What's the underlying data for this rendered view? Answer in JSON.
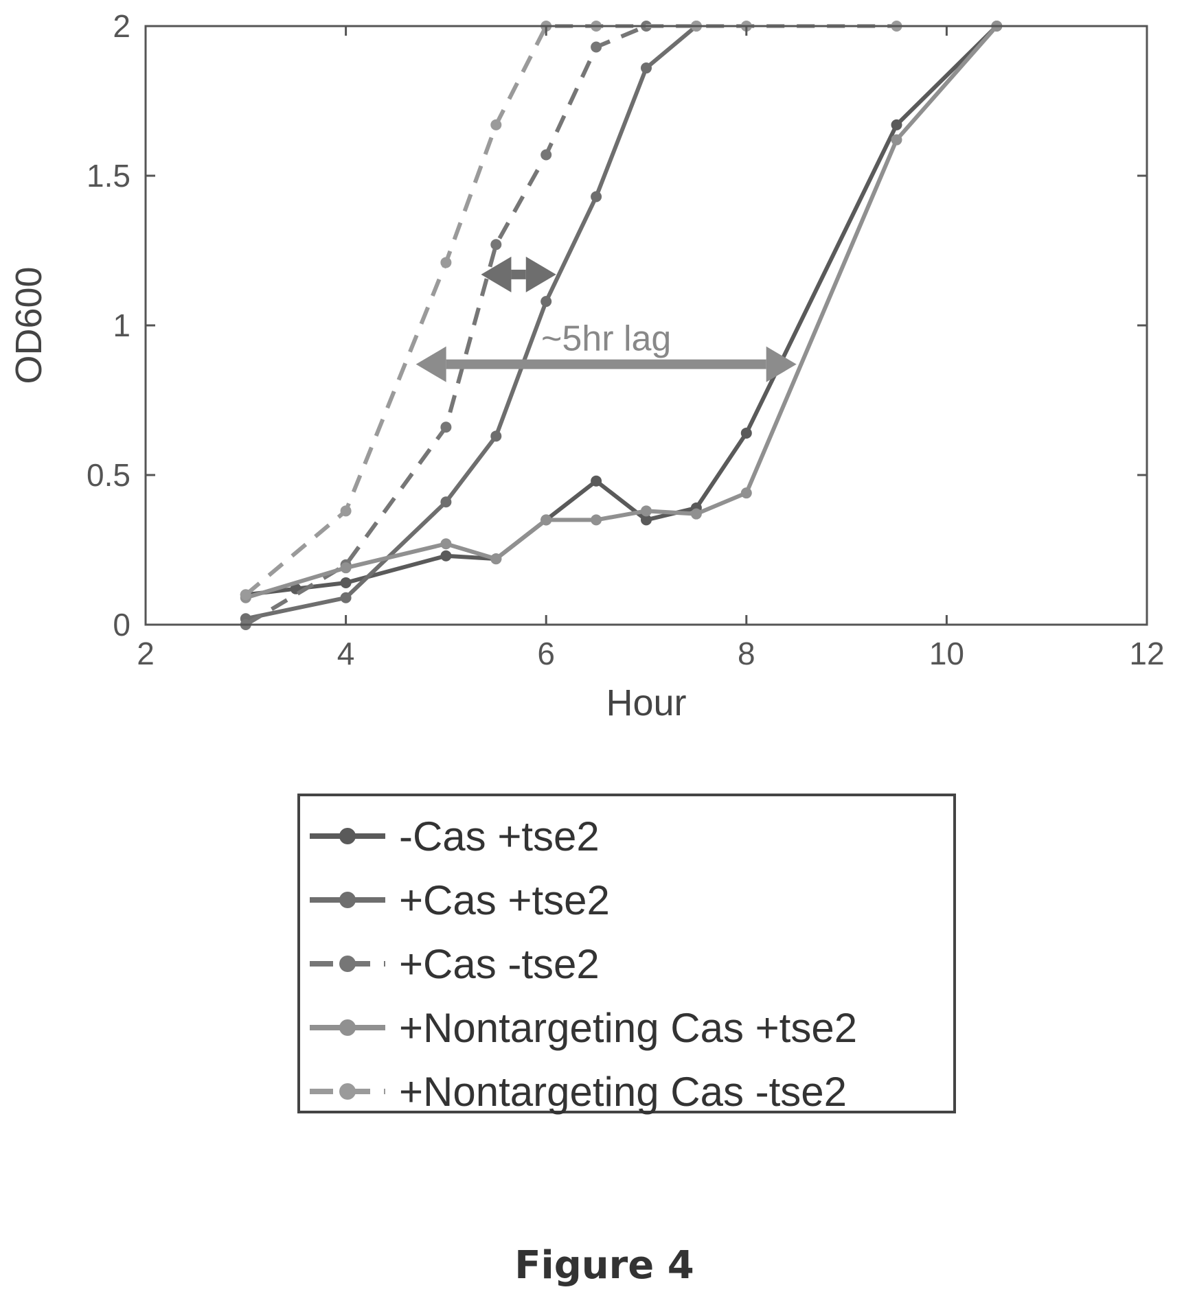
{
  "chart_data": {
    "type": "line",
    "xlabel": "Hour",
    "ylabel": "OD600",
    "xlim": [
      2,
      12
    ],
    "ylim": [
      0,
      2
    ],
    "xticks": [
      2,
      4,
      6,
      8,
      10,
      12
    ],
    "yticks": [
      0,
      0.5,
      1,
      1.5,
      2
    ],
    "ytick_labels": [
      "0",
      "0.5",
      "1",
      "1.5",
      "2"
    ],
    "grid": false,
    "legend_position": "below",
    "series": [
      {
        "name": "-Cas +tse2",
        "color": "#5a5a5a",
        "dash": "solid",
        "x": [
          3,
          3.5,
          4,
          5,
          5.5,
          6,
          6.5,
          7,
          7.5,
          8,
          9.5,
          10.5
        ],
        "y": [
          0.1,
          0.12,
          0.14,
          0.23,
          0.22,
          0.35,
          0.48,
          0.35,
          0.39,
          0.64,
          1.67,
          2.0
        ]
      },
      {
        "name": "+Cas +tse2",
        "color": "#6e6e6e",
        "dash": "solid",
        "x": [
          3,
          4,
          5,
          5.5,
          6,
          6.5,
          7,
          7.5
        ],
        "y": [
          0.02,
          0.09,
          0.41,
          0.63,
          1.08,
          1.43,
          1.86,
          2.0
        ]
      },
      {
        "name": "+Cas -tse2",
        "color": "#767676",
        "dash": "dashed",
        "x": [
          3,
          4,
          5,
          5.5,
          6,
          6.5,
          7
        ],
        "y": [
          0.0,
          0.2,
          0.66,
          1.27,
          1.57,
          1.93,
          2.0
        ]
      },
      {
        "name": "+Nontargeting Cas +tse2",
        "color": "#909090",
        "dash": "solid",
        "x": [
          3,
          4,
          5,
          5.5,
          6,
          6.5,
          7,
          7.5,
          8,
          9.5,
          10.5
        ],
        "y": [
          0.09,
          0.19,
          0.27,
          0.22,
          0.35,
          0.35,
          0.38,
          0.37,
          0.44,
          1.62,
          2.0
        ]
      },
      {
        "name": "+Nontargeting Cas -tse2",
        "color": "#9a9a9a",
        "dash": "dashed",
        "x": [
          3,
          4,
          5,
          5.5,
          6,
          6.5,
          7.5,
          8,
          9.5
        ],
        "y": [
          0.1,
          0.38,
          1.21,
          1.67,
          2.0,
          2.0,
          2.0,
          2.0,
          2.0
        ]
      }
    ],
    "annotations": [
      {
        "text": "~5hr lag",
        "arrow_from": [
          4.7,
          0.87
        ],
        "arrow_to": [
          8.5,
          0.87
        ],
        "color": "#8c8c8c"
      },
      {
        "text": "",
        "arrow_from": [
          5.35,
          1.17
        ],
        "arrow_to": [
          6.1,
          1.17
        ],
        "color": "#6e6e6e"
      }
    ]
  },
  "figure_caption": "Figure 4"
}
